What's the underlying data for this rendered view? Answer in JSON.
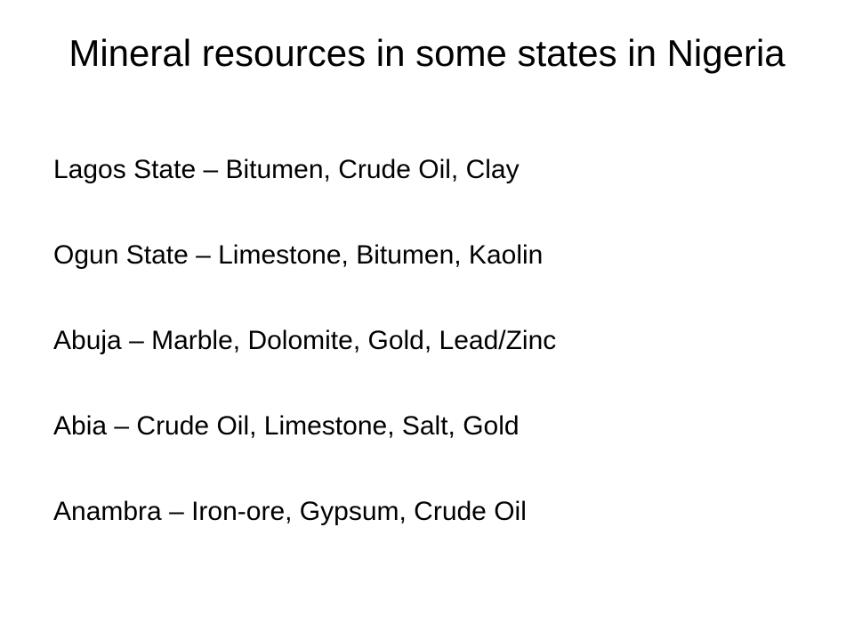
{
  "slide": {
    "title": "Mineral resources in some states in Nigeria",
    "lines": [
      "Lagos State – Bitumen, Crude Oil, Clay",
      "Ogun State – Limestone, Bitumen, Kaolin",
      "Abuja – Marble, Dolomite, Gold, Lead/Zinc",
      "Abia – Crude Oil, Limestone, Salt, Gold",
      "Anambra – Iron-ore, Gypsum, Crude Oil"
    ]
  }
}
